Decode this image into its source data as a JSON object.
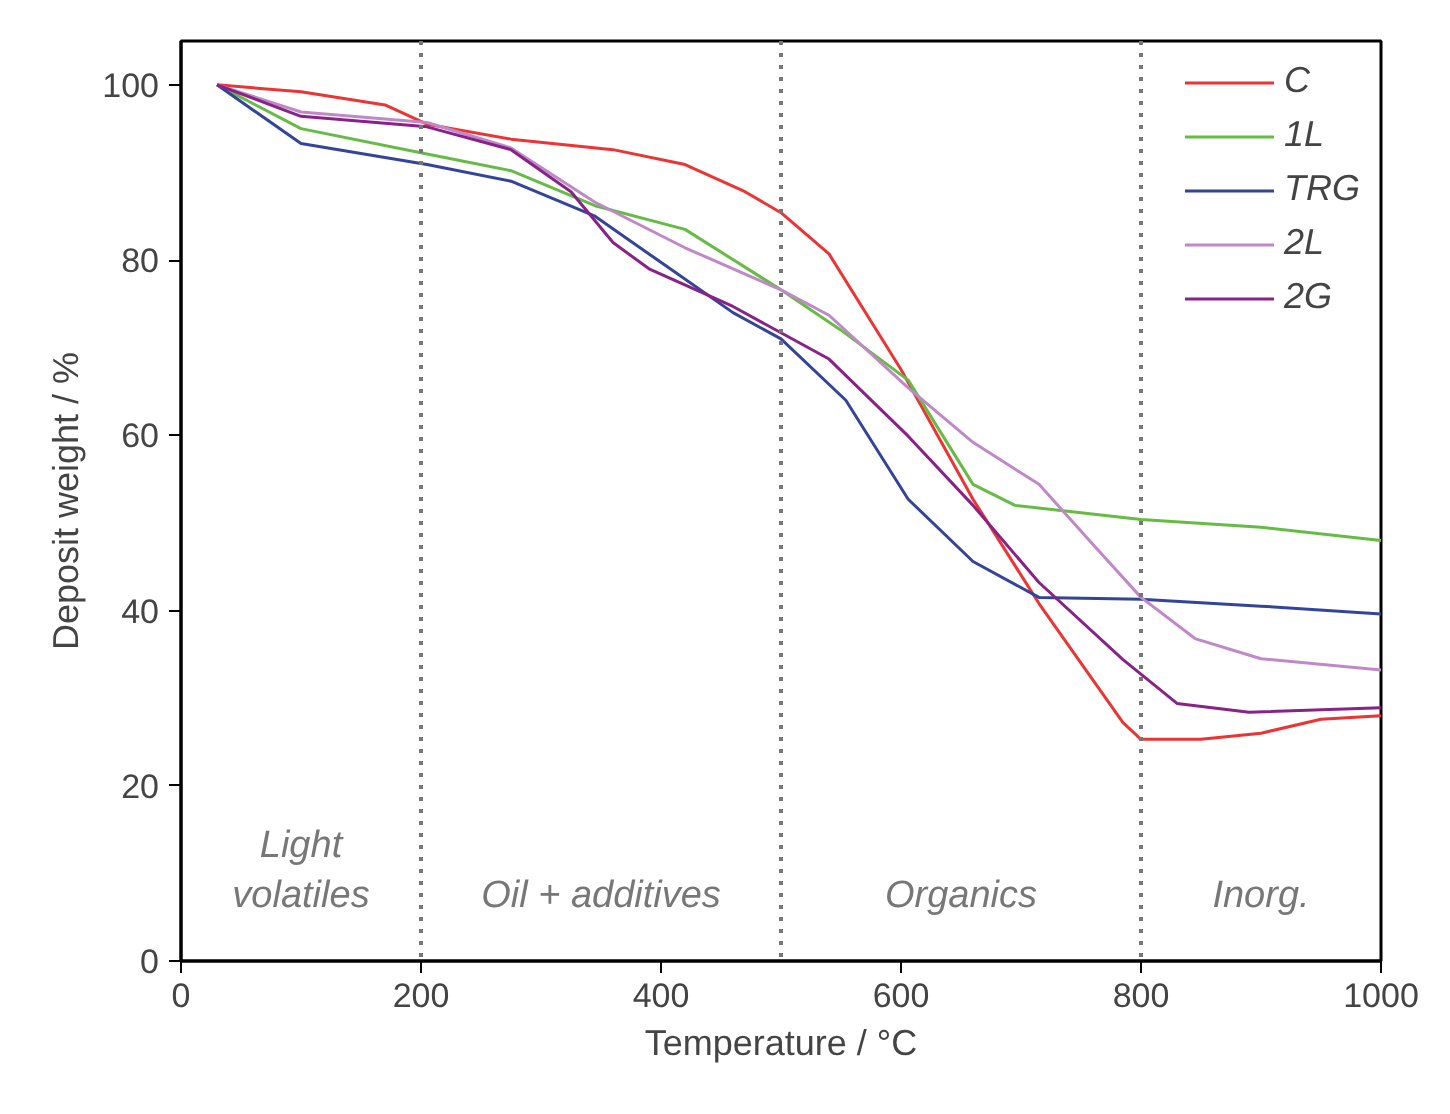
{
  "chart_data": {
    "type": "line",
    "xlabel": "Temperature / °C",
    "ylabel": "Deposit weight / %",
    "xlim": [
      0,
      1000
    ],
    "ylim": [
      0,
      105
    ],
    "xticks": [
      0,
      200,
      400,
      600,
      800,
      1000
    ],
    "yticks": [
      0,
      20,
      40,
      60,
      80,
      100
    ],
    "grid": false,
    "legend": "top right",
    "line_style": "solid",
    "marker": "none",
    "series": [
      {
        "name": "C",
        "color": "#ee3333",
        "x": [
          30,
          100,
          170,
          205,
          275,
          360,
          420,
          470,
          500,
          540,
          600,
          660,
          715,
          785,
          800,
          850,
          900,
          950,
          1000
        ],
        "values": [
          100,
          99.2,
          97.7,
          95.5,
          93.8,
          92.6,
          90.9,
          87.8,
          85.4,
          80.7,
          67.5,
          52.7,
          40.8,
          27.2,
          25.3,
          25.3,
          26,
          27.6,
          28
        ]
      },
      {
        "name": "1L",
        "color": "#66bb44",
        "x": [
          30,
          100,
          205,
          275,
          345,
          420,
          500,
          550,
          606,
          660,
          695,
          800,
          900,
          1000
        ],
        "values": [
          100,
          95,
          92.1,
          90.2,
          86.2,
          83.5,
          76.6,
          72,
          66.3,
          54.4,
          52,
          50.4,
          49.5,
          48
        ]
      },
      {
        "name": "TRG",
        "color": "#33449a",
        "x": [
          30,
          100,
          205,
          275,
          345,
          390,
          460,
          500,
          554,
          606,
          660,
          715,
          800,
          900,
          1000
        ],
        "values": [
          100,
          93.3,
          90.9,
          89,
          85,
          80.7,
          74,
          71,
          64,
          52.7,
          45.6,
          41.5,
          41.3,
          40.5,
          39.6
        ]
      },
      {
        "name": "2L",
        "color": "#c088c8",
        "x": [
          30,
          100,
          205,
          275,
          345,
          420,
          500,
          540,
          606,
          660,
          715,
          757,
          800,
          845,
          900,
          1000
        ],
        "values": [
          100,
          96.9,
          95.7,
          92.8,
          86.6,
          81.4,
          76.6,
          73.7,
          65.4,
          59.2,
          54.4,
          48,
          41.5,
          36.8,
          34.5,
          33.2
        ]
      },
      {
        "name": "2G",
        "color": "#882288",
        "x": [
          30,
          100,
          205,
          275,
          325,
          360,
          390,
          460,
          540,
          606,
          660,
          715,
          785,
          830,
          890,
          1000
        ],
        "values": [
          100,
          96.4,
          95.2,
          92.6,
          87.8,
          82,
          79,
          74.7,
          68.7,
          59.9,
          52,
          43.2,
          34.4,
          29.4,
          28.4,
          28.9
        ]
      }
    ],
    "ref_lines": [
      {
        "axis": "x",
        "value": 200,
        "color": "#777777",
        "line_style": "dotted"
      },
      {
        "axis": "x",
        "value": 500,
        "color": "#777777",
        "line_style": "dotted"
      },
      {
        "axis": "x",
        "value": 800,
        "color": "#777777",
        "line_style": "dotted"
      }
    ],
    "annotations": [
      "Light\nvolatiles",
      "Oil + additives",
      "Organics",
      "Inorg."
    ]
  }
}
